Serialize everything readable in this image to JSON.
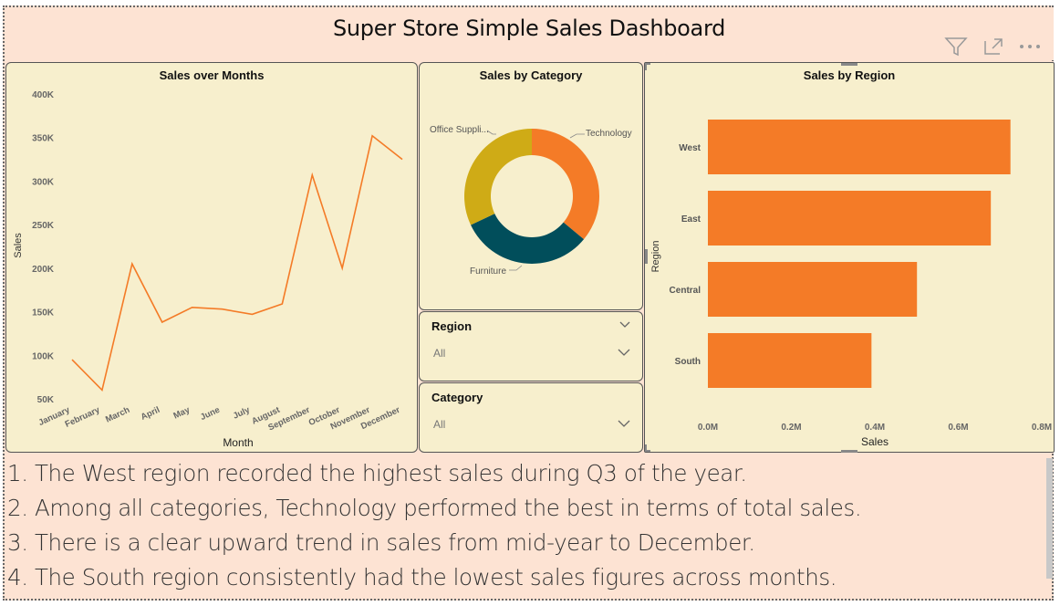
{
  "dashboard": {
    "title": "Super Store Simple Sales Dashboard",
    "header_icons": [
      "filter-icon",
      "focus-mode-icon",
      "more-options-icon"
    ]
  },
  "colors": {
    "page_bg": "#fde3d3",
    "panel_bg": "#f7efcd",
    "accent_orange": "#f47b27",
    "olive": "#cfab16",
    "teal": "#014e5b"
  },
  "line_chart": {
    "chart_data": {
      "type": "line",
      "title": "Sales over Months",
      "xlabel": "Month",
      "ylabel": "Sales",
      "categories": [
        "January",
        "February",
        "March",
        "April",
        "May",
        "June",
        "July",
        "August",
        "September",
        "October",
        "November",
        "December"
      ],
      "values": [
        95000,
        60000,
        205000,
        138000,
        155000,
        153000,
        147000,
        159000,
        307000,
        200000,
        352000,
        325000
      ],
      "y_ticks": [
        "50K",
        "100K",
        "150K",
        "200K",
        "250K",
        "300K",
        "350K",
        "400K"
      ],
      "ylim": [
        50000,
        400000
      ],
      "grid": false
    }
  },
  "donut_chart": {
    "chart_data": {
      "type": "pie",
      "title": "Sales by Category",
      "labels": [
        "Technology",
        "Furniture",
        "Office Suppli..."
      ],
      "values": [
        36,
        32,
        32
      ]
    }
  },
  "bar_chart": {
    "chart_data": {
      "type": "bar",
      "orientation": "horizontal",
      "title": "Sales by Region",
      "xlabel": "Sales",
      "ylabel": "Region",
      "categories": [
        "West",
        "East",
        "Central",
        "South"
      ],
      "values": [
        725000,
        678000,
        501000,
        392000
      ],
      "x_ticks": [
        "0.0M",
        "0.2M",
        "0.4M",
        "0.6M",
        "0.8M"
      ],
      "xlim": [
        0,
        800000
      ]
    }
  },
  "slicers": {
    "region": {
      "title": "Region",
      "value": "All"
    },
    "category": {
      "title": "Category",
      "value": "All"
    }
  },
  "notes": [
    "1. The West region recorded the highest sales during Q3 of the year.",
    "2. Among all categories, Technology performed the best in terms of total sales.",
    "3. There is a clear upward trend in sales from mid-year to December.",
    "4. The South region consistently had the lowest sales figures across months."
  ]
}
